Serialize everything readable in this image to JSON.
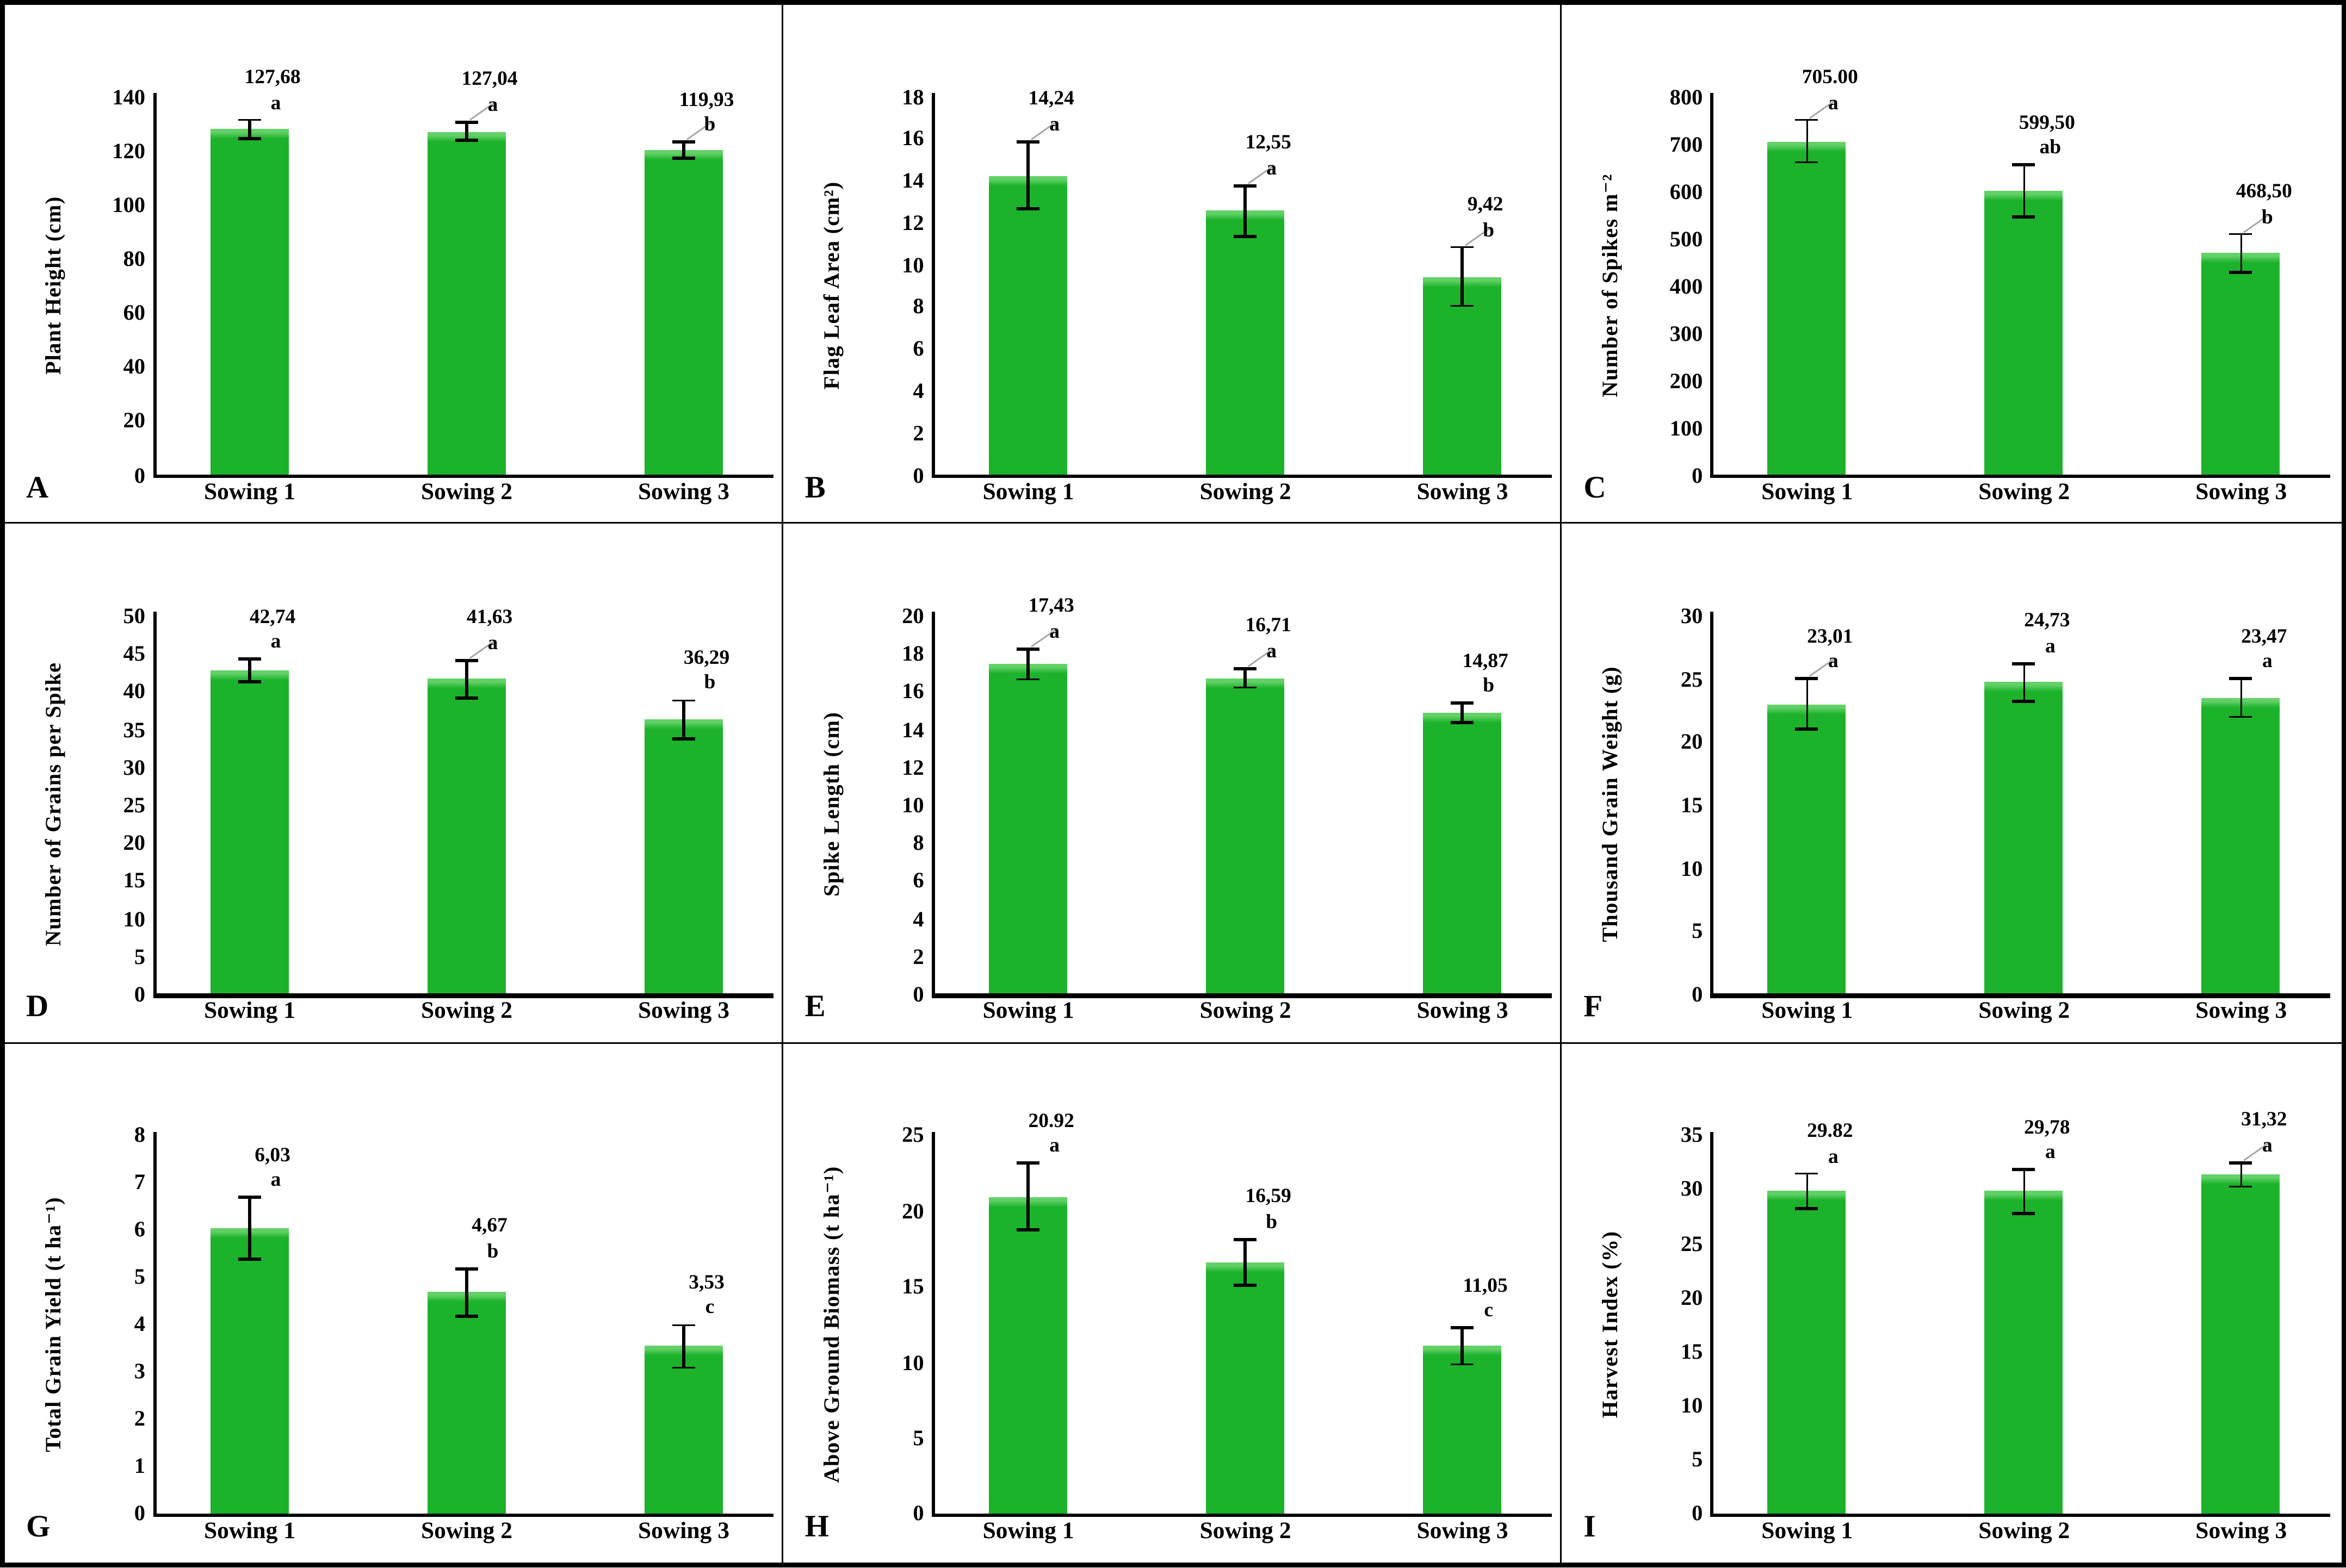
{
  "figure": {
    "background": "#ffffff",
    "border_color": "#000000",
    "bar_color": "#1cb22b",
    "bar_highlight_color": "#62d167",
    "error_bar_color": "#000000",
    "leader_line_color": "#a6a6a6",
    "categories": [
      "Sowing 1",
      "Sowing 2",
      "Sowing 3"
    ]
  },
  "chart_data": [
    {
      "panel": "A",
      "type": "bar",
      "title": "",
      "xlabel": "",
      "ylabel": "Plant Height (cm)",
      "ylim": [
        0,
        140
      ],
      "ystep": 20,
      "grid": false,
      "legend": "none",
      "yticks": [
        0,
        20,
        40,
        60,
        80,
        100,
        120,
        140
      ],
      "categories": [
        "Sowing 1",
        "Sowing 2",
        "Sowing 3"
      ],
      "bars": [
        {
          "category": "Sowing 1",
          "value": 127.68,
          "label": "127,68",
          "letter": "a",
          "err": 3.5,
          "leader": false
        },
        {
          "category": "Sowing 2",
          "value": 127.04,
          "label": "127,04",
          "letter": "a",
          "err": 3.5,
          "leader": true
        },
        {
          "category": "Sowing 3",
          "value": 119.93,
          "label": "119,93",
          "letter": "b",
          "err": 3.0,
          "leader": true
        }
      ]
    },
    {
      "panel": "B",
      "type": "bar",
      "title": "",
      "xlabel": "",
      "ylabel": "Flag Leaf Area (cm²)",
      "ylim": [
        0,
        18
      ],
      "ystep": 2,
      "grid": false,
      "legend": "none",
      "yticks": [
        0,
        2,
        4,
        6,
        8,
        10,
        12,
        14,
        16,
        18
      ],
      "categories": [
        "Sowing 1",
        "Sowing 2",
        "Sowing 3"
      ],
      "bars": [
        {
          "category": "Sowing 1",
          "value": 14.24,
          "label": "14,24",
          "letter": "a",
          "err": 1.6,
          "leader": true
        },
        {
          "category": "Sowing 2",
          "value": 12.55,
          "label": "12,55",
          "letter": "a",
          "err": 1.2,
          "leader": true
        },
        {
          "category": "Sowing 3",
          "value": 9.42,
          "label": "9,42",
          "letter": "b",
          "err": 1.4,
          "leader": true
        }
      ]
    },
    {
      "panel": "C",
      "type": "bar",
      "title": "",
      "xlabel": "",
      "ylabel": "Number of Spikes m⁻²",
      "ylim": [
        0,
        800
      ],
      "ystep": 100,
      "grid": false,
      "legend": "none",
      "yticks": [
        0,
        100,
        200,
        300,
        400,
        500,
        600,
        700,
        800
      ],
      "categories": [
        "Sowing 1",
        "Sowing 2",
        "Sowing 3"
      ],
      "bars": [
        {
          "category": "Sowing 1",
          "value": 705.0,
          "label": "705.00",
          "letter": "a",
          "err": 45,
          "leader": true
        },
        {
          "category": "Sowing 2",
          "value": 599.5,
          "label": "599,50",
          "letter": "ab",
          "err": 55,
          "leader": false
        },
        {
          "category": "Sowing 3",
          "value": 468.5,
          "label": "468,50",
          "letter": "b",
          "err": 40,
          "leader": true
        }
      ]
    },
    {
      "panel": "D",
      "type": "bar",
      "title": "",
      "xlabel": "",
      "ylabel": "Number of Grains per Spike",
      "ylim": [
        0,
        50
      ],
      "ystep": 5,
      "grid": false,
      "legend": "none",
      "yticks": [
        0,
        5,
        10,
        15,
        20,
        25,
        30,
        35,
        40,
        45,
        50
      ],
      "categories": [
        "Sowing 1",
        "Sowing 2",
        "Sowing 3"
      ],
      "bars": [
        {
          "category": "Sowing 1",
          "value": 42.74,
          "label": "42,74",
          "letter": "a",
          "err": 1.5,
          "leader": false
        },
        {
          "category": "Sowing 2",
          "value": 41.63,
          "label": "41,63",
          "letter": "a",
          "err": 2.5,
          "leader": true
        },
        {
          "category": "Sowing 3",
          "value": 36.29,
          "label": "36,29",
          "letter": "b",
          "err": 2.5,
          "leader": false
        }
      ]
    },
    {
      "panel": "E",
      "type": "bar",
      "title": "",
      "xlabel": "",
      "ylabel": "Spike Length (cm)",
      "ylim": [
        0,
        20
      ],
      "ystep": 2,
      "grid": false,
      "legend": "none",
      "yticks": [
        0,
        2,
        4,
        6,
        8,
        10,
        12,
        14,
        16,
        18,
        20
      ],
      "categories": [
        "Sowing 1",
        "Sowing 2",
        "Sowing 3"
      ],
      "bars": [
        {
          "category": "Sowing 1",
          "value": 17.43,
          "label": "17,43",
          "letter": "a",
          "err": 0.8,
          "leader": true
        },
        {
          "category": "Sowing 2",
          "value": 16.71,
          "label": "16,71",
          "letter": "a",
          "err": 0.5,
          "leader": true
        },
        {
          "category": "Sowing 3",
          "value": 14.87,
          "label": "14,87",
          "letter": "b",
          "err": 0.5,
          "leader": false
        }
      ]
    },
    {
      "panel": "F",
      "type": "bar",
      "title": "",
      "xlabel": "",
      "ylabel": "Thousand Grain Weight (g)",
      "ylim": [
        0,
        30
      ],
      "ystep": 5,
      "grid": false,
      "legend": "none",
      "yticks": [
        0,
        5,
        10,
        15,
        20,
        25,
        30
      ],
      "categories": [
        "Sowing 1",
        "Sowing 2",
        "Sowing 3"
      ],
      "bars": [
        {
          "category": "Sowing 1",
          "value": 23.01,
          "label": "23,01",
          "letter": "a",
          "err": 2.0,
          "leader": true
        },
        {
          "category": "Sowing 2",
          "value": 24.73,
          "label": "24,73",
          "letter": "a",
          "err": 1.5,
          "leader": false
        },
        {
          "category": "Sowing 3",
          "value": 23.47,
          "label": "23,47",
          "letter": "a",
          "err": 1.5,
          "leader": false
        }
      ]
    },
    {
      "panel": "G",
      "type": "bar",
      "title": "",
      "xlabel": "",
      "ylabel": "Total Grain Yield (t ha⁻¹)",
      "ylim": [
        0,
        8
      ],
      "ystep": 1,
      "grid": false,
      "legend": "none",
      "yticks": [
        0,
        1,
        2,
        3,
        4,
        5,
        6,
        7,
        8
      ],
      "categories": [
        "Sowing 1",
        "Sowing 2",
        "Sowing 3"
      ],
      "bars": [
        {
          "category": "Sowing 1",
          "value": 6.03,
          "label": "6,03",
          "letter": "a",
          "err": 0.65,
          "leader": false
        },
        {
          "category": "Sowing 2",
          "value": 4.67,
          "label": "4,67",
          "letter": "b",
          "err": 0.5,
          "leader": false
        },
        {
          "category": "Sowing 3",
          "value": 3.53,
          "label": "3,53",
          "letter": "c",
          "err": 0.45,
          "leader": false
        }
      ]
    },
    {
      "panel": "H",
      "type": "bar",
      "title": "",
      "xlabel": "",
      "ylabel": "Above Ground Biomass (t ha⁻¹)",
      "ylim": [
        0,
        25
      ],
      "ystep": 5,
      "grid": false,
      "legend": "none",
      "yticks": [
        0,
        5,
        10,
        15,
        20,
        25
      ],
      "categories": [
        "Sowing 1",
        "Sowing 2",
        "Sowing 3"
      ],
      "bars": [
        {
          "category": "Sowing 1",
          "value": 20.92,
          "label": "20.92",
          "letter": "a",
          "err": 2.2,
          "leader": false
        },
        {
          "category": "Sowing 2",
          "value": 16.59,
          "label": "16,59",
          "letter": "b",
          "err": 1.5,
          "leader": false
        },
        {
          "category": "Sowing 3",
          "value": 11.05,
          "label": "11,05",
          "letter": "c",
          "err": 1.2,
          "leader": false
        }
      ]
    },
    {
      "panel": "I",
      "type": "bar",
      "title": "",
      "xlabel": "",
      "ylabel": "Harvest Index (%)",
      "ylim": [
        0,
        35
      ],
      "ystep": 5,
      "grid": false,
      "legend": "none",
      "yticks": [
        0,
        5,
        10,
        15,
        20,
        25,
        30,
        35
      ],
      "categories": [
        "Sowing 1",
        "Sowing 2",
        "Sowing 3"
      ],
      "bars": [
        {
          "category": "Sowing 1",
          "value": 29.82,
          "label": "29.82",
          "letter": "a",
          "err": 1.6,
          "leader": false
        },
        {
          "category": "Sowing 2",
          "value": 29.78,
          "label": "29,78",
          "letter": "a",
          "err": 2.0,
          "leader": false
        },
        {
          "category": "Sowing 3",
          "value": 31.32,
          "label": "31,32",
          "letter": "a",
          "err": 1.1,
          "leader": true
        }
      ]
    }
  ]
}
